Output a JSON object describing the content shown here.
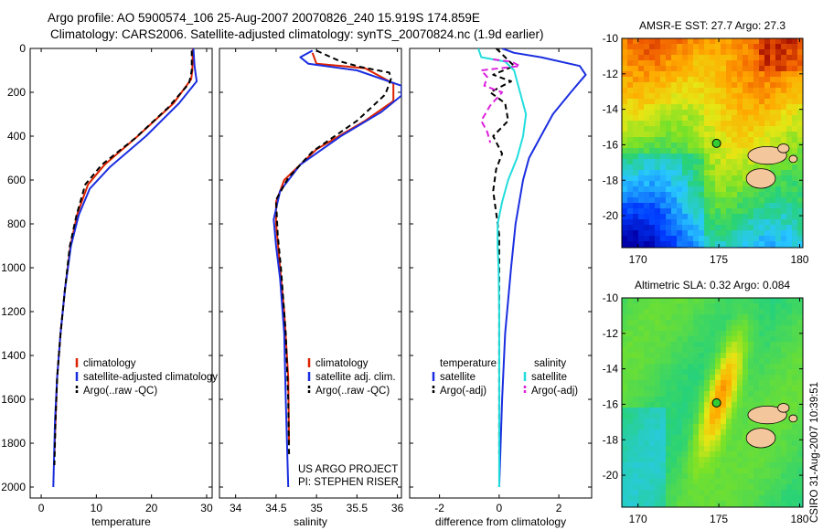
{
  "header": {
    "line1": "Argo profile: AO 5900574_106 25-Aug-2007 20070826_240 15.919S 174.859E",
    "line2": "Climatology: CARS2006. Satellite-adjusted climatology: synTS_20070824.nc (1.9d earlier)"
  },
  "side_text": "CSIRO 31-Aug-2007 10:39:51",
  "credit": {
    "line1": "US ARGO PROJECT",
    "line2": "PI: STEPHEN RISER"
  },
  "colors": {
    "climatology": "#dd2200",
    "satellite": "#1a2ee0",
    "argo": "#000000",
    "sat_salinity": "#22dddd",
    "argo_salinity": "#dd22dd"
  },
  "chart_data": [
    {
      "id": "temperature",
      "type": "line",
      "xlabel": "temperature",
      "xlim": [
        -2,
        31
      ],
      "ylim": [
        0,
        2050
      ],
      "y_reversed": true,
      "xticks": [
        0,
        10,
        20,
        30
      ],
      "yticks": [
        0,
        200,
        400,
        600,
        800,
        1000,
        1200,
        1400,
        1600,
        1800,
        2000
      ],
      "legend": [
        "climatology",
        "satellite-adjusted climatology",
        "Argo(..raw -QC)"
      ],
      "series": [
        {
          "name": "climatology",
          "color": "#dd2200",
          "dash": "",
          "points": [
            [
              27.5,
              0
            ],
            [
              27.4,
              100
            ],
            [
              27.2,
              140
            ],
            [
              24,
              250
            ],
            [
              17.5,
              400
            ],
            [
              11.5,
              530
            ],
            [
              8.5,
              620
            ],
            [
              6.6,
              750
            ],
            [
              5.3,
              900
            ],
            [
              4.3,
              1100
            ],
            [
              3.5,
              1300
            ],
            [
              2.9,
              1500
            ],
            [
              2.6,
              1700
            ],
            [
              2.4,
              1850
            ]
          ]
        },
        {
          "name": "satellite-adjusted climatology",
          "color": "#1a2ee0",
          "dash": "",
          "points": [
            [
              27.6,
              0
            ],
            [
              27.8,
              80
            ],
            [
              28.2,
              150
            ],
            [
              25,
              250
            ],
            [
              19,
              400
            ],
            [
              12.5,
              540
            ],
            [
              8.8,
              640
            ],
            [
              6.8,
              760
            ],
            [
              5.4,
              900
            ],
            [
              4.3,
              1100
            ],
            [
              3.5,
              1300
            ],
            [
              2.9,
              1500
            ],
            [
              2.5,
              1700
            ],
            [
              2.2,
              2000
            ]
          ]
        },
        {
          "name": "Argo(..raw -QC)",
          "color": "#000000",
          "dash": "6,4",
          "points": [
            [
              27.3,
              10
            ],
            [
              27.3,
              100
            ],
            [
              26.8,
              160
            ],
            [
              23,
              270
            ],
            [
              17,
              410
            ],
            [
              11,
              530
            ],
            [
              8,
              620
            ],
            [
              6.4,
              760
            ],
            [
              5.2,
              900
            ],
            [
              4.3,
              1100
            ],
            [
              3.5,
              1300
            ],
            [
              2.9,
              1500
            ],
            [
              2.6,
              1700
            ],
            [
              2.4,
              1900
            ]
          ]
        }
      ]
    },
    {
      "id": "salinity",
      "type": "line",
      "xlabel": "salinity",
      "xlim": [
        33.8,
        36.05
      ],
      "ylim": [
        0,
        2050
      ],
      "y_reversed": true,
      "xticks": [
        34,
        34.5,
        35,
        35.5,
        36
      ],
      "yticks": [
        0,
        200,
        400,
        600,
        800,
        1000,
        1200,
        1400,
        1600,
        1800,
        2000
      ],
      "legend": [
        "climatology",
        "satellite adj. clim.",
        "Argo(..raw -QC)"
      ],
      "series": [
        {
          "name": "climatology",
          "color": "#dd2200",
          "dash": "",
          "points": [
            [
              34.95,
              20
            ],
            [
              35.0,
              70
            ],
            [
              35.6,
              90
            ],
            [
              35.95,
              160
            ],
            [
              35.95,
              240
            ],
            [
              35.6,
              330
            ],
            [
              35.0,
              460
            ],
            [
              34.6,
              600
            ],
            [
              34.5,
              700
            ],
            [
              34.5,
              800
            ],
            [
              34.55,
              1000
            ],
            [
              34.6,
              1200
            ],
            [
              34.65,
              1500
            ],
            [
              34.66,
              1800
            ]
          ]
        },
        {
          "name": "satellite adj. clim.",
          "color": "#1a2ee0",
          "dash": "",
          "points": [
            [
              34.95,
              10
            ],
            [
              34.8,
              40
            ],
            [
              34.9,
              70
            ],
            [
              35.5,
              100
            ],
            [
              36.05,
              170
            ],
            [
              36.05,
              215
            ],
            [
              35.8,
              290
            ],
            [
              35.3,
              400
            ],
            [
              34.8,
              530
            ],
            [
              34.55,
              650
            ],
            [
              34.47,
              780
            ],
            [
              34.5,
              900
            ],
            [
              34.55,
              1050
            ],
            [
              34.6,
              1300
            ],
            [
              34.62,
              1600
            ],
            [
              34.65,
              2000
            ]
          ]
        },
        {
          "name": "Argo(..raw -QC)",
          "color": "#000000",
          "dash": "6,4",
          "points": [
            [
              35.0,
              10
            ],
            [
              35.3,
              60
            ],
            [
              35.55,
              85
            ],
            [
              35.9,
              110
            ],
            [
              35.92,
              140
            ],
            [
              35.85,
              210
            ],
            [
              35.5,
              330
            ],
            [
              34.95,
              470
            ],
            [
              34.65,
              590
            ],
            [
              34.5,
              690
            ],
            [
              34.52,
              850
            ],
            [
              34.56,
              1000
            ],
            [
              34.62,
              1300
            ],
            [
              34.65,
              1600
            ],
            [
              34.66,
              1850
            ]
          ]
        }
      ]
    },
    {
      "id": "difference",
      "type": "line",
      "xlabel": "difference from climatology",
      "xlim": [
        -3,
        3.1
      ],
      "ylim": [
        0,
        2050
      ],
      "y_reversed": true,
      "xticks": [
        -2,
        0,
        2
      ],
      "yticks": [
        0,
        200,
        400,
        600,
        800,
        1000,
        1200,
        1400,
        1600,
        1800,
        2000
      ],
      "legend_titles": [
        "temperature",
        "salinity"
      ],
      "legend": [
        "satellite",
        "Argo(-adj)",
        "satellite",
        "Argo(-adj)"
      ],
      "series": [
        {
          "name": "temperature satellite",
          "color": "#1a2ee0",
          "dash": "",
          "points": [
            [
              0.1,
              0
            ],
            [
              0.5,
              20
            ],
            [
              1.4,
              40
            ],
            [
              2.7,
              80
            ],
            [
              2.9,
              120
            ],
            [
              2.4,
              200
            ],
            [
              1.8,
              300
            ],
            [
              1.4,
              400
            ],
            [
              1.0,
              500
            ],
            [
              0.8,
              600
            ],
            [
              0.55,
              800
            ],
            [
              0.4,
              1000
            ],
            [
              0.2,
              1300
            ],
            [
              0.1,
              1600
            ],
            [
              0,
              2000
            ]
          ]
        },
        {
          "name": "temperature Argo(-adj)",
          "color": "#000000",
          "dash": "6,4",
          "points": [
            [
              -0.1,
              0
            ],
            [
              0.5,
              80
            ],
            [
              -0.2,
              120
            ],
            [
              0.4,
              150
            ],
            [
              -0.3,
              200
            ],
            [
              0.2,
              250
            ],
            [
              0.3,
              330
            ],
            [
              -0.2,
              400
            ],
            [
              0.1,
              480
            ],
            [
              -0.1,
              550
            ],
            [
              -0.2,
              650
            ],
            [
              -0.1,
              750
            ],
            [
              0,
              850
            ],
            [
              0,
              1000
            ],
            [
              0,
              1400
            ],
            [
              0,
              1850
            ]
          ]
        },
        {
          "name": "salinity satellite",
          "color": "#22dddd",
          "dash": "",
          "points": [
            [
              -0.7,
              0
            ],
            [
              -0.6,
              40
            ],
            [
              0.2,
              60
            ],
            [
              0.5,
              100
            ],
            [
              0.7,
              200
            ],
            [
              0.9,
              300
            ],
            [
              0.8,
              400
            ],
            [
              0.6,
              500
            ],
            [
              0.3,
              600
            ],
            [
              0.1,
              700
            ],
            [
              -0.05,
              800
            ],
            [
              -0.05,
              900
            ],
            [
              -0.02,
              1000
            ],
            [
              0,
              1200
            ],
            [
              0,
              1600
            ],
            [
              0,
              2000
            ]
          ]
        },
        {
          "name": "salinity Argo(-adj)",
          "color": "#dd22dd",
          "dash": "7,4",
          "points": [
            [
              -0.2,
              50
            ],
            [
              0.4,
              60
            ],
            [
              0.7,
              80
            ],
            [
              -0.6,
              100
            ],
            [
              -0.4,
              130
            ],
            [
              -0.5,
              170
            ],
            [
              0.1,
              200
            ],
            [
              -0.3,
              260
            ],
            [
              -0.6,
              330
            ],
            [
              -0.4,
              380
            ],
            [
              -0.3,
              430
            ]
          ]
        }
      ]
    },
    {
      "id": "sst_map",
      "type": "heatmap",
      "title": "AMSR-E SST: 27.7 Argo: 27.3",
      "xticks": [
        170,
        175,
        180
      ],
      "yticks": [
        -10,
        -12,
        -14,
        -16,
        -18,
        -20
      ],
      "xlim": [
        169,
        180.2
      ],
      "ylim": [
        -21.8,
        -10
      ],
      "marker": {
        "lon": 174.859,
        "lat": -15.919
      }
    },
    {
      "id": "sla_map",
      "type": "heatmap",
      "title": "Altimetric SLA: 0.32 Argo: 0.084",
      "xticks": [
        170,
        175,
        180
      ],
      "yticks": [
        -10,
        -12,
        -14,
        -16,
        -18,
        -20
      ],
      "xlim": [
        169,
        180.2
      ],
      "ylim": [
        -21.8,
        -10
      ],
      "marker": {
        "lon": 174.859,
        "lat": -15.919
      }
    }
  ]
}
